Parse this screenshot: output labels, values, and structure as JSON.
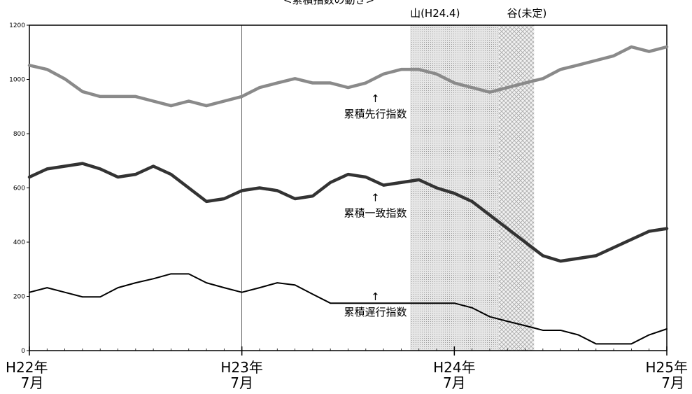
{
  "chart_data": {
    "type": "line",
    "title": "<累積指数の動き>",
    "ylim": [
      0,
      1200
    ],
    "yticks": [
      0,
      200,
      400,
      600,
      800,
      1000,
      1200
    ],
    "x_index_range": [
      0,
      36
    ],
    "x_ticks": [
      {
        "index": 0,
        "line1": "H22年",
        "line2": "7月"
      },
      {
        "index": 12,
        "line1": "H23年",
        "line2": "7月"
      },
      {
        "index": 24,
        "line1": "H24年",
        "line2": "7月"
      },
      {
        "index": 36,
        "line1": "H25年",
        "line2": "7月"
      }
    ],
    "marker_index": 12,
    "shading": [
      {
        "label": "山(H24.4)",
        "from_index": 21.5,
        "to_index": 26.5,
        "color": "#d3d3d3"
      },
      {
        "label": "谷(未定)",
        "from_index": 26.5,
        "to_index": 28.5,
        "color": "#e2e2e2"
      }
    ],
    "series": [
      {
        "name": "累積先行指数",
        "color": "#8a8a8a",
        "values": [
          1052,
          1037,
          1002,
          955,
          937,
          937,
          937,
          920,
          903,
          920,
          903,
          920,
          937,
          970,
          987,
          1003,
          987,
          987,
          970,
          987,
          1020,
          1037,
          1037,
          1020,
          987,
          970,
          953,
          970,
          987,
          1003,
          1037,
          1053,
          1070,
          1087,
          1120,
          1103,
          1120
        ]
      },
      {
        "name": "累積一致指数",
        "color": "#333333",
        "values": [
          640,
          670,
          680,
          690,
          670,
          640,
          650,
          680,
          650,
          600,
          550,
          560,
          590,
          600,
          590,
          560,
          570,
          620,
          650,
          640,
          610,
          620,
          630,
          600,
          580,
          550,
          500,
          450,
          400,
          350,
          330,
          340,
          350,
          380,
          410,
          440,
          450
        ]
      },
      {
        "name": "累積遅行指数",
        "color": "#000000",
        "values": [
          215,
          232,
          215,
          198,
          198,
          232,
          250,
          265,
          283,
          283,
          250,
          232,
          215,
          232,
          250,
          242,
          208,
          175,
          175,
          175,
          175,
          175,
          175,
          175,
          175,
          158,
          125,
          108,
          92,
          75,
          75,
          58,
          25,
          25,
          25,
          58,
          80
        ]
      }
    ],
    "annotations": [
      {
        "arrow": "↑",
        "text": "累積先行指数",
        "at_index": 19.5,
        "at_value": 870
      },
      {
        "arrow": "↑",
        "text": "累積一致指数",
        "at_index": 19.5,
        "at_value": 505
      },
      {
        "arrow": "↑",
        "text": "累積遅行指数",
        "at_index": 19.5,
        "at_value": 140
      }
    ]
  }
}
